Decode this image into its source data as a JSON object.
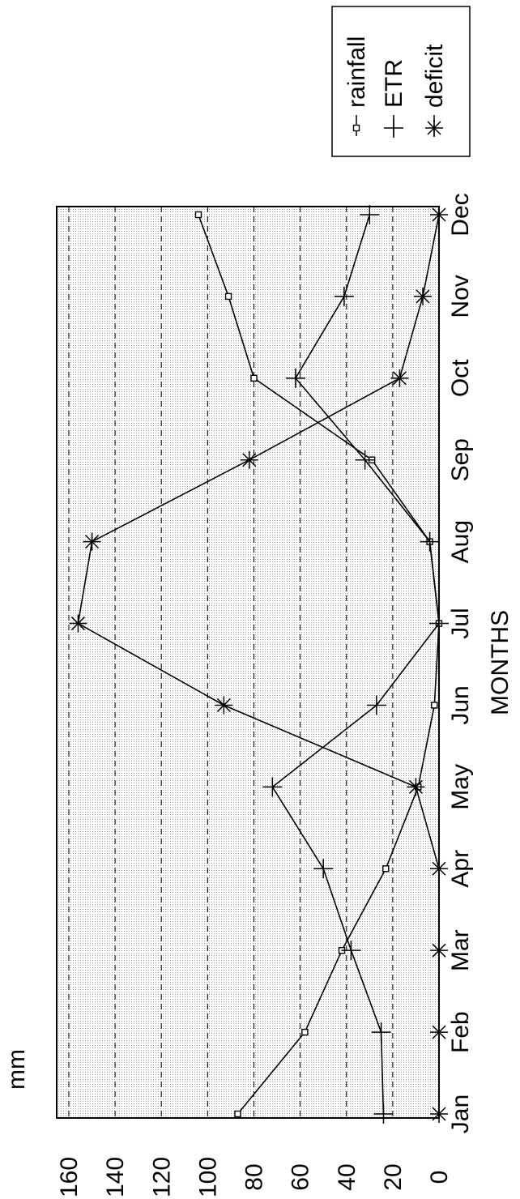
{
  "chart_data": {
    "type": "line",
    "orientation": "rotated-90-ccw",
    "xlabel": "MONTHS",
    "ylabel": "mm",
    "categories": [
      "Jan",
      "Feb",
      "Mar",
      "Apr",
      "May",
      "Jun",
      "Jul",
      "Aug",
      "Sep",
      "Oct",
      "Nov",
      "Dec"
    ],
    "ylim": [
      0,
      160
    ],
    "yticks": [
      "0",
      "20",
      "40",
      "60",
      "80",
      "100",
      "120",
      "140",
      "160"
    ],
    "grid": true,
    "legend_position": "top-right",
    "series": [
      {
        "name": "rainfall",
        "marker": "square",
        "values": [
          87,
          58,
          42,
          23,
          9,
          2,
          0,
          4,
          29,
          80,
          91,
          104
        ]
      },
      {
        "name": "ETR",
        "marker": "plus",
        "values": [
          24,
          25,
          38,
          50,
          72,
          27,
          0,
          4,
          32,
          62,
          41,
          30
        ]
      },
      {
        "name": "deficit",
        "marker": "asterisk",
        "values": [
          0,
          0,
          0,
          0,
          10,
          93,
          156,
          150,
          82,
          17,
          7,
          0
        ]
      }
    ]
  }
}
